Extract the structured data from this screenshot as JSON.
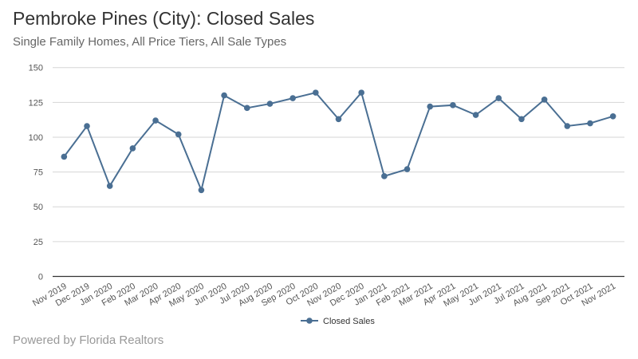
{
  "header": {
    "title": "Pembroke Pines (City): Closed Sales",
    "subtitle": "Single Family Homes, All Price Tiers, All Sale Types"
  },
  "footer": {
    "credit": "Powered by Florida Realtors"
  },
  "chart_data": {
    "type": "line",
    "title": "Pembroke Pines (City): Closed Sales",
    "subtitle": "Single Family Homes, All Price Tiers, All Sale Types",
    "xlabel": "",
    "ylabel": "",
    "ylim": [
      0,
      150
    ],
    "yticks": [
      0,
      25,
      50,
      75,
      100,
      125,
      150
    ],
    "grid": true,
    "legend_position": "bottom",
    "color": "#4a6f93",
    "categories": [
      "Nov 2019",
      "Dec 2019",
      "Jan 2020",
      "Feb 2020",
      "Mar 2020",
      "Apr 2020",
      "May 2020",
      "Jun 2020",
      "Jul 2020",
      "Aug 2020",
      "Sep 2020",
      "Oct 2020",
      "Nov 2020",
      "Dec 2020",
      "Jan 2021",
      "Feb 2021",
      "Mar 2021",
      "Apr 2021",
      "May 2021",
      "Jun 2021",
      "Jul 2021",
      "Aug 2021",
      "Sep 2021",
      "Oct 2021",
      "Nov 2021"
    ],
    "series": [
      {
        "name": "Closed Sales",
        "values": [
          86,
          108,
          65,
          92,
          112,
          102,
          62,
          130,
          121,
          124,
          128,
          132,
          113,
          132,
          72,
          77,
          122,
          123,
          116,
          128,
          113,
          127,
          108,
          110,
          115
        ]
      }
    ]
  }
}
